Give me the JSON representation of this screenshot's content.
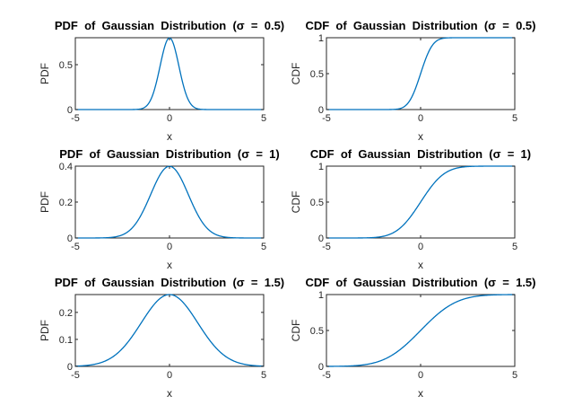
{
  "colors": {
    "line": "#0072bd",
    "axes": "#262626",
    "background": "#ffffff"
  },
  "chart_data": [
    {
      "type": "line",
      "title": "PDF  of  Gaussian  Distribution  (σ  =  0.5)",
      "xlabel": "x",
      "ylabel": "PDF",
      "xlim": [
        -5,
        5
      ],
      "ylim": [
        0,
        0.8
      ],
      "xticks": [
        -5,
        0,
        5
      ],
      "yticks": [
        0,
        0.5
      ],
      "ytick_labels": [
        "0",
        "0.5"
      ],
      "series": [
        {
          "function": "pdf",
          "mu": 0,
          "sigma": 0.5
        }
      ]
    },
    {
      "type": "line",
      "title": "CDF  of  Gaussian  Distribution  (σ  =  0.5)",
      "xlabel": "x",
      "ylabel": "CDF",
      "xlim": [
        -5,
        5
      ],
      "ylim": [
        0,
        1
      ],
      "xticks": [
        -5,
        0,
        5
      ],
      "yticks": [
        0,
        0.5,
        1
      ],
      "ytick_labels": [
        "0",
        "0.5",
        "1"
      ],
      "series": [
        {
          "function": "cdf",
          "mu": 0,
          "sigma": 0.5
        }
      ]
    },
    {
      "type": "line",
      "title": "PDF  of  Gaussian  Distribution  (σ  =  1)",
      "xlabel": "x",
      "ylabel": "PDF",
      "xlim": [
        -5,
        5
      ],
      "ylim": [
        0,
        0.4
      ],
      "xticks": [
        -5,
        0,
        5
      ],
      "yticks": [
        0,
        0.2,
        0.4
      ],
      "ytick_labels": [
        "0",
        "0.2",
        "0.4"
      ],
      "series": [
        {
          "function": "pdf",
          "mu": 0,
          "sigma": 1
        }
      ]
    },
    {
      "type": "line",
      "title": "CDF  of  Gaussian  Distribution  (σ  =  1)",
      "xlabel": "x",
      "ylabel": "CDF",
      "xlim": [
        -5,
        5
      ],
      "ylim": [
        0,
        1
      ],
      "xticks": [
        -5,
        0,
        5
      ],
      "yticks": [
        0,
        0.5,
        1
      ],
      "ytick_labels": [
        "0",
        "0.5",
        "1"
      ],
      "series": [
        {
          "function": "cdf",
          "mu": 0,
          "sigma": 1
        }
      ]
    },
    {
      "type": "line",
      "title": "PDF  of  Gaussian  Distribution  (σ  =  1.5)",
      "xlabel": "x",
      "ylabel": "PDF",
      "xlim": [
        -5,
        5
      ],
      "ylim": [
        0,
        0.266
      ],
      "xticks": [
        -5,
        0,
        5
      ],
      "yticks": [
        0,
        0.1,
        0.2
      ],
      "ytick_labels": [
        "0",
        "0.1",
        "0.2"
      ],
      "series": [
        {
          "function": "pdf",
          "mu": 0,
          "sigma": 1.5
        }
      ]
    },
    {
      "type": "line",
      "title": "CDF  of  Gaussian  Distribution  (σ  =  1.5)",
      "xlabel": "x",
      "ylabel": "CDF",
      "xlim": [
        -5,
        5
      ],
      "ylim": [
        0,
        1
      ],
      "xticks": [
        -5,
        0,
        5
      ],
      "yticks": [
        0,
        0.5,
        1
      ],
      "ytick_labels": [
        "0",
        "0.5",
        "1"
      ],
      "series": [
        {
          "function": "cdf",
          "mu": 0,
          "sigma": 1.5
        }
      ]
    }
  ]
}
